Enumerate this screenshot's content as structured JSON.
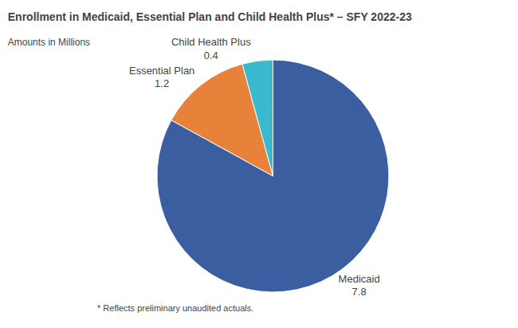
{
  "chart_data": {
    "type": "pie",
    "title": "Enrollment in Medicaid, Essential Plan and Child Health Plus* – SFY 2022-23",
    "subtitle": "Amounts in Millions",
    "annotations": [
      "* Reflects preliminary unaudited actuals."
    ],
    "categories": [
      "Medicaid",
      "Essential Plan",
      "Child Health Plus"
    ],
    "values": [
      7.8,
      1.2,
      0.4
    ],
    "colors": [
      "#3a5ea0",
      "#e8823a",
      "#3ab8cc"
    ],
    "data_labels": true
  }
}
